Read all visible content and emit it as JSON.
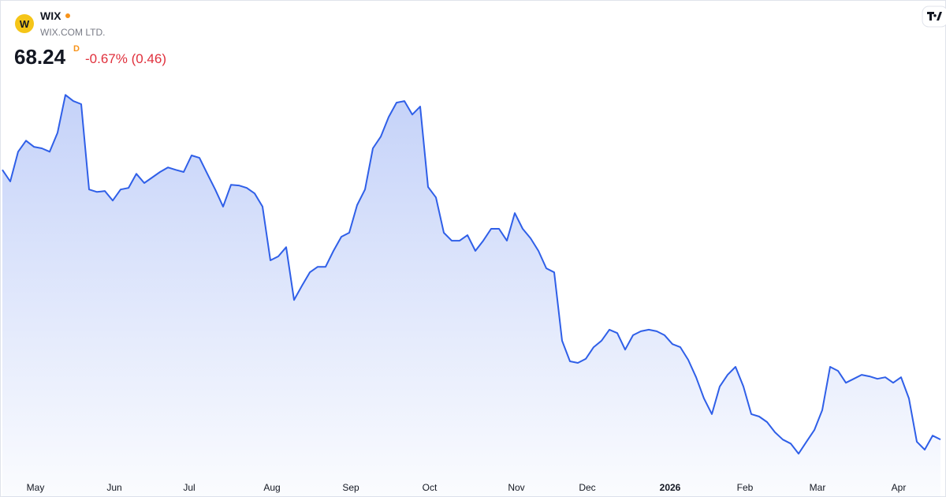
{
  "header": {
    "logo": "W",
    "symbol": "WIX",
    "name": "WIX.COM LTD.",
    "price": "68.24",
    "interval": "D",
    "change": "-0.67% (0.46)"
  },
  "chart_data": {
    "type": "line",
    "color": "#2f5fe8",
    "values": [
      156.1,
      152.3,
      162.0,
      165.6,
      163.6,
      163.1,
      162.0,
      168.2,
      180.5,
      178.5,
      177.5,
      149.7,
      148.9,
      149.2,
      146.1,
      149.7,
      150.2,
      154.8,
      151.8,
      153.6,
      155.4,
      156.9,
      156.1,
      155.4,
      160.8,
      160.0,
      154.8,
      149.7,
      144.1,
      151.2,
      151.0,
      150.2,
      148.4,
      144.1,
      126.6,
      127.9,
      130.9,
      113.7,
      118.3,
      122.7,
      124.5,
      124.5,
      129.7,
      134.3,
      135.6,
      144.6,
      149.7,
      163.1,
      166.9,
      173.3,
      178.0,
      178.5,
      174.1,
      176.7,
      150.5,
      147.1,
      135.6,
      133.0,
      133.0,
      134.8,
      129.7,
      133.0,
      136.9,
      136.9,
      133.0,
      142.0,
      136.9,
      133.8,
      129.7,
      124.0,
      122.7,
      100.4,
      93.7,
      93.2,
      94.5,
      98.3,
      100.4,
      104.0,
      102.9,
      97.5,
      102.2,
      103.5,
      104.0,
      103.5,
      102.2,
      99.3,
      98.3,
      94.2,
      88.5,
      81.6,
      76.5,
      85.5,
      89.3,
      91.9,
      85.5,
      76.5,
      75.7,
      73.9,
      70.6,
      68.2,
      66.9,
      63.6,
      67.5,
      71.3,
      77.8,
      91.9,
      90.6,
      86.7,
      88.0,
      89.3,
      88.8,
      88.0,
      88.5,
      86.7,
      88.5,
      81.6,
      67.5,
      64.9,
      69.5,
      68.24
    ],
    "ylim": [
      57.2,
      188.3
    ],
    "xlim": [
      0,
      119
    ],
    "xticks": [
      {
        "value": 4.2,
        "label": "May"
      },
      {
        "value": 14.2,
        "label": "Jun"
      },
      {
        "value": 23.7,
        "label": "Jul"
      },
      {
        "value": 34.2,
        "label": "Aug"
      },
      {
        "value": 44.2,
        "label": "Sep"
      },
      {
        "value": 54.2,
        "label": "Oct"
      },
      {
        "value": 65.2,
        "label": "Nov"
      },
      {
        "value": 74.2,
        "label": "Dec"
      },
      {
        "value": 84.7,
        "label": "2026"
      },
      {
        "value": 94.2,
        "label": "Feb"
      },
      {
        "value": 103.4,
        "label": "Mar"
      },
      {
        "value": 113.7,
        "label": "Apr"
      }
    ]
  }
}
